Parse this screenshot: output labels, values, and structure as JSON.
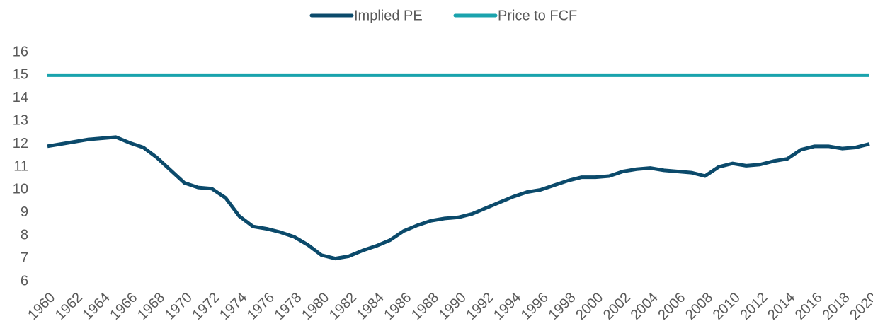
{
  "chart_data": {
    "type": "line",
    "x": [
      1960,
      1961,
      1962,
      1963,
      1964,
      1965,
      1966,
      1967,
      1968,
      1969,
      1970,
      1971,
      1972,
      1973,
      1974,
      1975,
      1976,
      1977,
      1978,
      1979,
      1980,
      1981,
      1982,
      1983,
      1984,
      1985,
      1986,
      1987,
      1988,
      1989,
      1990,
      1991,
      1992,
      1993,
      1994,
      1995,
      1996,
      1997,
      1998,
      1999,
      2000,
      2001,
      2002,
      2003,
      2004,
      2005,
      2006,
      2007,
      2008,
      2009,
      2010,
      2011,
      2012,
      2013,
      2014,
      2015,
      2016,
      2017,
      2018,
      2019,
      2020
    ],
    "series": [
      {
        "name": "Implied PE",
        "color": "#0b4a6b",
        "values": [
          11.9,
          12.0,
          12.1,
          12.2,
          12.25,
          12.3,
          12.05,
          11.85,
          11.4,
          10.85,
          10.3,
          10.1,
          10.05,
          9.65,
          8.85,
          8.4,
          8.3,
          8.15,
          7.95,
          7.6,
          7.15,
          7.0,
          7.1,
          7.35,
          7.55,
          7.8,
          8.2,
          8.45,
          8.65,
          8.75,
          8.8,
          8.95,
          9.2,
          9.45,
          9.7,
          9.9,
          10.0,
          10.2,
          10.4,
          10.55,
          10.55,
          10.6,
          10.8,
          10.9,
          10.95,
          10.85,
          10.8,
          10.75,
          10.6,
          11.0,
          11.15,
          11.05,
          11.1,
          11.25,
          11.35,
          11.75,
          11.9,
          11.9,
          11.8,
          11.85,
          12.0
        ]
      },
      {
        "name": "Price to FCF",
        "color": "#1aa3ad",
        "values": [
          15,
          15,
          15,
          15,
          15,
          15,
          15,
          15,
          15,
          15,
          15,
          15,
          15,
          15,
          15,
          15,
          15,
          15,
          15,
          15,
          15,
          15,
          15,
          15,
          15,
          15,
          15,
          15,
          15,
          15,
          15,
          15,
          15,
          15,
          15,
          15,
          15,
          15,
          15,
          15,
          15,
          15,
          15,
          15,
          15,
          15,
          15,
          15,
          15,
          15,
          15,
          15,
          15,
          15,
          15,
          15,
          15,
          15,
          15,
          15,
          15
        ]
      }
    ],
    "xlim": [
      1960,
      2020
    ],
    "xticks": [
      1960,
      1962,
      1964,
      1966,
      1968,
      1970,
      1972,
      1974,
      1976,
      1978,
      1980,
      1982,
      1984,
      1986,
      1988,
      1990,
      1992,
      1994,
      1996,
      1998,
      2000,
      2002,
      2004,
      2006,
      2008,
      2010,
      2012,
      2014,
      2016,
      2018,
      2020
    ],
    "ylim": [
      6,
      16
    ],
    "yticks": [
      6,
      7,
      8,
      9,
      10,
      11,
      12,
      13,
      14,
      15,
      16
    ],
    "grid": false,
    "legend": "top"
  }
}
